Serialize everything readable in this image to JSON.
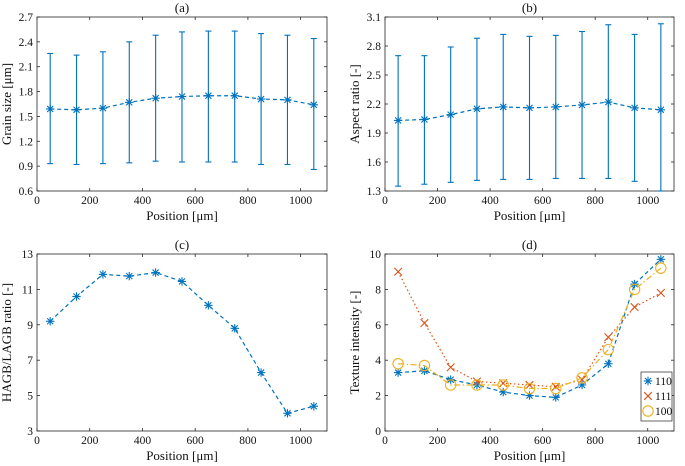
{
  "chart_data": [
    {
      "id": "a",
      "type": "line",
      "title": "(a)",
      "xlabel": "Position [μm]",
      "ylabel": "Grain size [μm]",
      "xlim": [
        0,
        1100
      ],
      "ylim": [
        0.6,
        2.7
      ],
      "xticks": [
        0,
        200,
        400,
        600,
        800,
        1000
      ],
      "yticks": [
        0.6,
        0.9,
        1.2,
        1.5,
        1.8,
        2.1,
        2.4,
        2.7
      ],
      "ytick_labels": [
        "0.6",
        "0.9",
        "1.2",
        "1.5",
        "1.8",
        "2.1",
        "2.4",
        "2.7"
      ],
      "x": [
        50,
        150,
        250,
        350,
        450,
        550,
        650,
        750,
        850,
        950,
        1050
      ],
      "series": [
        {
          "name": "Grain size",
          "values": [
            1.59,
            1.58,
            1.6,
            1.67,
            1.72,
            1.74,
            1.75,
            1.75,
            1.71,
            1.7,
            1.64
          ],
          "lower": [
            0.93,
            0.92,
            0.93,
            0.94,
            0.96,
            0.95,
            0.95,
            0.95,
            0.92,
            0.92,
            0.86
          ],
          "upper": [
            2.26,
            2.24,
            2.28,
            2.4,
            2.48,
            2.52,
            2.53,
            2.53,
            2.5,
            2.48,
            2.44
          ],
          "color": "#0072BD",
          "marker": "asterisk",
          "linestyle": "dashed"
        }
      ]
    },
    {
      "id": "b",
      "type": "line",
      "title": "(b)",
      "xlabel": "Position [μm]",
      "ylabel": "Aspect ratio [-]",
      "xlim": [
        0,
        1100
      ],
      "ylim": [
        1.3,
        3.1
      ],
      "xticks": [
        0,
        200,
        400,
        600,
        800,
        1000
      ],
      "yticks": [
        1.3,
        1.6,
        1.9,
        2.2,
        2.5,
        2.8,
        3.1
      ],
      "ytick_labels": [
        "1.3",
        "1.6",
        "1.9",
        "2.2",
        "2.5",
        "2.8",
        "3.1"
      ],
      "x": [
        50,
        150,
        250,
        350,
        450,
        550,
        650,
        750,
        850,
        950,
        1050
      ],
      "series": [
        {
          "name": "Aspect ratio",
          "values": [
            2.03,
            2.04,
            2.09,
            2.15,
            2.17,
            2.16,
            2.17,
            2.19,
            2.22,
            2.16,
            2.14
          ],
          "lower": [
            1.35,
            1.37,
            1.39,
            1.41,
            1.42,
            1.42,
            1.43,
            1.43,
            1.43,
            1.4,
            1.3
          ],
          "upper": [
            2.7,
            2.7,
            2.79,
            2.88,
            2.92,
            2.9,
            2.91,
            2.95,
            3.02,
            2.92,
            3.03
          ],
          "color": "#0072BD",
          "marker": "asterisk",
          "linestyle": "dashed"
        }
      ]
    },
    {
      "id": "c",
      "type": "line",
      "title": "(c)",
      "xlabel": "Position [μm]",
      "ylabel": "HAGB/LAGB ratio [-]",
      "xlim": [
        0,
        1100
      ],
      "ylim": [
        3,
        13
      ],
      "xticks": [
        0,
        200,
        400,
        600,
        800,
        1000
      ],
      "yticks": [
        3,
        5,
        7,
        9,
        11,
        13
      ],
      "ytick_labels": [
        "3",
        "5",
        "7",
        "9",
        "11",
        "13"
      ],
      "x": [
        50,
        150,
        250,
        350,
        450,
        550,
        650,
        750,
        850,
        950,
        1050
      ],
      "series": [
        {
          "name": "HAGB/LAGB ratio",
          "values": [
            9.2,
            10.6,
            11.85,
            11.75,
            11.95,
            11.45,
            10.1,
            8.8,
            6.3,
            4.0,
            4.4
          ],
          "color": "#0072BD",
          "marker": "asterisk",
          "linestyle": "dashed"
        }
      ]
    },
    {
      "id": "d",
      "type": "line",
      "title": "(d)",
      "xlabel": "Position [μm]",
      "ylabel": "Texture intensity [-]",
      "xlim": [
        0,
        1100
      ],
      "ylim": [
        0,
        10
      ],
      "xticks": [
        0,
        200,
        400,
        600,
        800,
        1000
      ],
      "yticks": [
        0,
        2,
        4,
        6,
        8,
        10
      ],
      "ytick_labels": [
        "0",
        "2",
        "4",
        "6",
        "8",
        "10"
      ],
      "x": [
        50,
        150,
        250,
        350,
        450,
        550,
        650,
        750,
        850,
        950,
        1050
      ],
      "legend_position": "right",
      "series": [
        {
          "name": "110",
          "values": [
            3.3,
            3.4,
            2.9,
            2.6,
            2.2,
            2.0,
            1.9,
            2.6,
            3.8,
            8.3,
            9.7
          ],
          "color": "#0072BD",
          "marker": "asterisk",
          "linestyle": "dashed"
        },
        {
          "name": "111",
          "values": [
            9.0,
            6.1,
            3.6,
            2.8,
            2.7,
            2.6,
            2.5,
            2.9,
            5.3,
            7.0,
            7.8
          ],
          "color": "#D95319",
          "marker": "x",
          "linestyle": "dotted"
        },
        {
          "name": "100",
          "values": [
            3.8,
            3.7,
            2.6,
            2.6,
            2.6,
            2.4,
            2.4,
            3.0,
            4.6,
            8.0,
            9.2
          ],
          "color": "#EDB120",
          "marker": "circle",
          "linestyle": "dashdot"
        }
      ]
    }
  ]
}
